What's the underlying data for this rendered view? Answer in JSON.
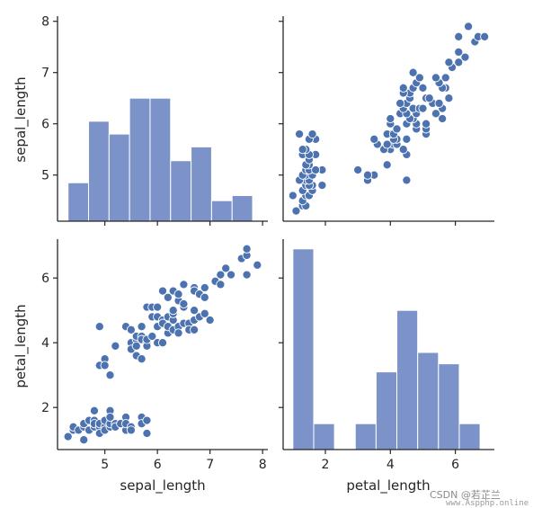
{
  "watermark": {
    "line1": "CSDN @若芷兰",
    "line2": "www.Aspphp.online"
  },
  "colors": {
    "fill": "#7b93c9",
    "point": "#4c72b0",
    "axis": "#262626"
  },
  "chart_data": {
    "type": "pairplot",
    "variables": [
      "sepal_length",
      "petal_length"
    ],
    "axis_labels": {
      "x": [
        "sepal_length",
        "petal_length"
      ],
      "y": [
        "sepal_length",
        "petal_length"
      ]
    },
    "ticks": {
      "sepal_length": [
        5,
        6,
        7,
        8
      ],
      "petal_length": [
        2,
        4,
        6
      ]
    },
    "ranges": {
      "sepal_length": [
        4.1,
        8.1
      ],
      "petal_length": [
        0.7,
        7.2
      ]
    },
    "histograms": [
      {
        "variable": "sepal_length",
        "edges": [
          4.3,
          4.69,
          5.08,
          5.47,
          5.86,
          6.25,
          6.64,
          7.03,
          7.42,
          7.81
        ],
        "counts": [
          4.85,
          6.05,
          5.8,
          6.5,
          6.5,
          5.28,
          5.55,
          4.5,
          4.6
        ]
      },
      {
        "variable": "petal_length",
        "edges": [
          1.0,
          1.64,
          2.28,
          2.92,
          3.56,
          4.2,
          4.84,
          5.48,
          6.12,
          6.76
        ],
        "counts": [
          6.9,
          1.5,
          0,
          1.5,
          3.1,
          5.0,
          3.7,
          3.35,
          1.5
        ]
      }
    ],
    "scatter": {
      "x_var": "sepal_length",
      "y_var": "petal_length",
      "points": [
        [
          4.3,
          1.1
        ],
        [
          4.4,
          1.3
        ],
        [
          4.4,
          1.4
        ],
        [
          4.5,
          1.3
        ],
        [
          4.6,
          1.4
        ],
        [
          4.6,
          1.0
        ],
        [
          4.6,
          1.5
        ],
        [
          4.7,
          1.3
        ],
        [
          4.7,
          1.6
        ],
        [
          4.8,
          1.4
        ],
        [
          4.8,
          1.6
        ],
        [
          4.8,
          1.9
        ],
        [
          4.8,
          1.5
        ],
        [
          4.9,
          1.4
        ],
        [
          4.9,
          1.5
        ],
        [
          4.9,
          1.2
        ],
        [
          5.0,
          1.4
        ],
        [
          5.0,
          1.6
        ],
        [
          5.0,
          1.3
        ],
        [
          5.1,
          1.4
        ],
        [
          5.1,
          1.5
        ],
        [
          5.1,
          1.9
        ],
        [
          5.1,
          1.7
        ],
        [
          5.2,
          1.5
        ],
        [
          5.2,
          1.4
        ],
        [
          5.3,
          1.5
        ],
        [
          5.4,
          1.7
        ],
        [
          5.4,
          1.3
        ],
        [
          5.4,
          1.5
        ],
        [
          5.5,
          1.4
        ],
        [
          5.5,
          1.3
        ],
        [
          5.7,
          1.7
        ],
        [
          5.7,
          1.5
        ],
        [
          5.8,
          1.2
        ],
        [
          5.8,
          1.6
        ],
        [
          4.9,
          4.5
        ],
        [
          4.9,
          3.3
        ],
        [
          5.0,
          3.5
        ],
        [
          5.0,
          3.3
        ],
        [
          5.1,
          3.0
        ],
        [
          5.2,
          3.9
        ],
        [
          5.4,
          4.5
        ],
        [
          5.5,
          4.0
        ],
        [
          5.5,
          3.8
        ],
        [
          5.5,
          4.4
        ],
        [
          5.6,
          4.1
        ],
        [
          5.6,
          3.6
        ],
        [
          5.6,
          3.9
        ],
        [
          5.6,
          4.2
        ],
        [
          5.7,
          3.5
        ],
        [
          5.7,
          4.2
        ],
        [
          5.7,
          4.5
        ],
        [
          5.7,
          4.1
        ],
        [
          5.8,
          4.0
        ],
        [
          5.8,
          3.9
        ],
        [
          5.8,
          4.1
        ],
        [
          5.8,
          5.1
        ],
        [
          5.9,
          4.2
        ],
        [
          5.9,
          4.8
        ],
        [
          5.9,
          5.1
        ],
        [
          6.0,
          4.0
        ],
        [
          6.0,
          4.5
        ],
        [
          6.0,
          5.1
        ],
        [
          6.0,
          4.8
        ],
        [
          6.1,
          4.7
        ],
        [
          6.1,
          4.0
        ],
        [
          6.1,
          4.6
        ],
        [
          6.1,
          5.6
        ],
        [
          6.2,
          4.3
        ],
        [
          6.2,
          4.5
        ],
        [
          6.2,
          4.8
        ],
        [
          6.2,
          5.4
        ],
        [
          6.3,
          4.7
        ],
        [
          6.3,
          4.4
        ],
        [
          6.3,
          4.9
        ],
        [
          6.3,
          5.6
        ],
        [
          6.3,
          5.0
        ],
        [
          6.4,
          4.5
        ],
        [
          6.4,
          4.3
        ],
        [
          6.4,
          5.3
        ],
        [
          6.4,
          5.5
        ],
        [
          6.5,
          4.6
        ],
        [
          6.5,
          5.8
        ],
        [
          6.5,
          5.1
        ],
        [
          6.5,
          5.2
        ],
        [
          6.6,
          4.6
        ],
        [
          6.6,
          4.4
        ],
        [
          6.7,
          4.7
        ],
        [
          6.7,
          4.4
        ],
        [
          6.7,
          5.0
        ],
        [
          6.7,
          5.7
        ],
        [
          6.7,
          5.6
        ],
        [
          6.8,
          4.8
        ],
        [
          6.8,
          5.5
        ],
        [
          6.9,
          4.9
        ],
        [
          6.9,
          5.4
        ],
        [
          6.9,
          5.7
        ],
        [
          7.0,
          4.7
        ],
        [
          7.1,
          5.9
        ],
        [
          7.2,
          6.1
        ],
        [
          7.2,
          5.8
        ],
        [
          7.3,
          6.3
        ],
        [
          7.4,
          6.1
        ],
        [
          7.6,
          6.6
        ],
        [
          7.7,
          6.7
        ],
        [
          7.7,
          6.9
        ],
        [
          7.7,
          6.1
        ],
        [
          7.9,
          6.4
        ]
      ]
    }
  }
}
